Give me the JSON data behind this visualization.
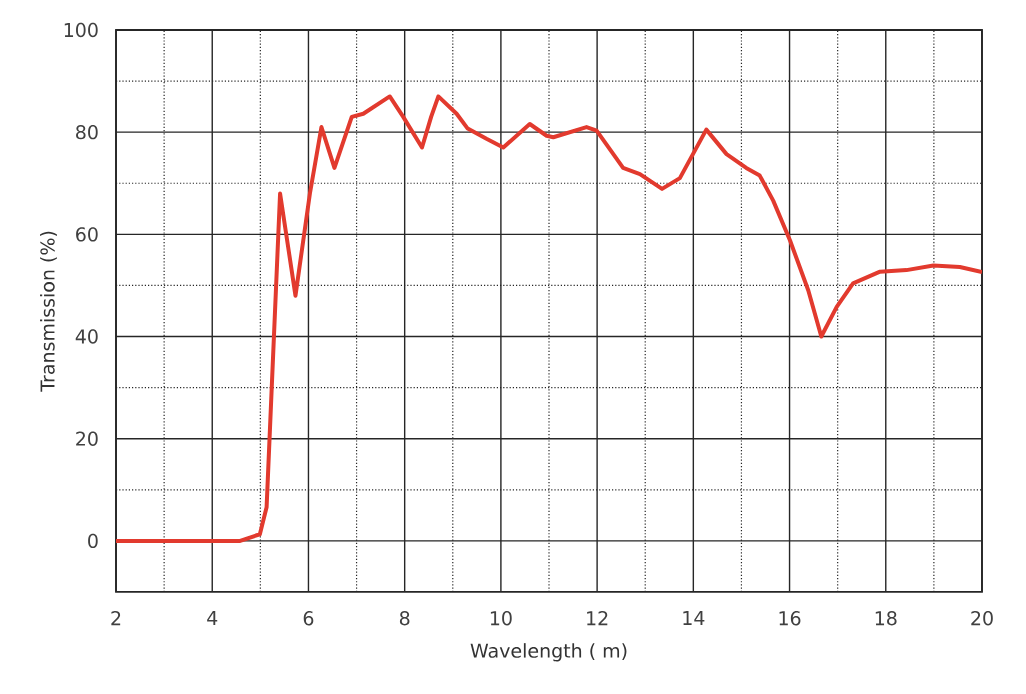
{
  "chart_data": {
    "type": "line",
    "xlabel": "Wavelength ( m)",
    "ylabel": "Transmission (%)",
    "xlim": [
      2,
      20
    ],
    "ylim": [
      -10,
      100
    ],
    "xticks": [
      2,
      4,
      6,
      8,
      10,
      12,
      14,
      16,
      18,
      20
    ],
    "yticks": [
      0,
      20,
      40,
      60,
      80,
      100
    ],
    "grid": true,
    "marker": "none",
    "line_style": "solid",
    "series": [
      {
        "color": "#e23a2e",
        "x": [
          2,
          4.58,
          4.99,
          5.13,
          5.41,
          5.73,
          6.03,
          6.27,
          6.54,
          6.9,
          7.14,
          7.69,
          7.97,
          8.36,
          8.55,
          8.7,
          9.08,
          9.31,
          9.7,
          10.05,
          10.6,
          10.95,
          11.09,
          11.78,
          11.99,
          12.54,
          12.89,
          13.35,
          13.72,
          14.27,
          14.69,
          15.1,
          15.38,
          15.66,
          16.01,
          16.39,
          16.66,
          16.98,
          17.32,
          17.88,
          18.43,
          18.99,
          19.54,
          20
        ],
        "values": [
          0,
          0,
          1.3,
          6.6,
          68,
          48,
          68,
          81,
          73,
          83,
          83.6,
          87,
          83,
          77,
          83,
          87,
          83.6,
          80.7,
          78.7,
          77,
          81.6,
          79.3,
          79,
          81,
          80.3,
          73,
          71.8,
          68.9,
          71,
          80.5,
          75.7,
          73,
          71.5,
          66.6,
          58.8,
          49,
          40,
          45.8,
          50.4,
          52.7,
          53,
          53.9,
          53.6,
          52.6
        ]
      }
    ]
  }
}
